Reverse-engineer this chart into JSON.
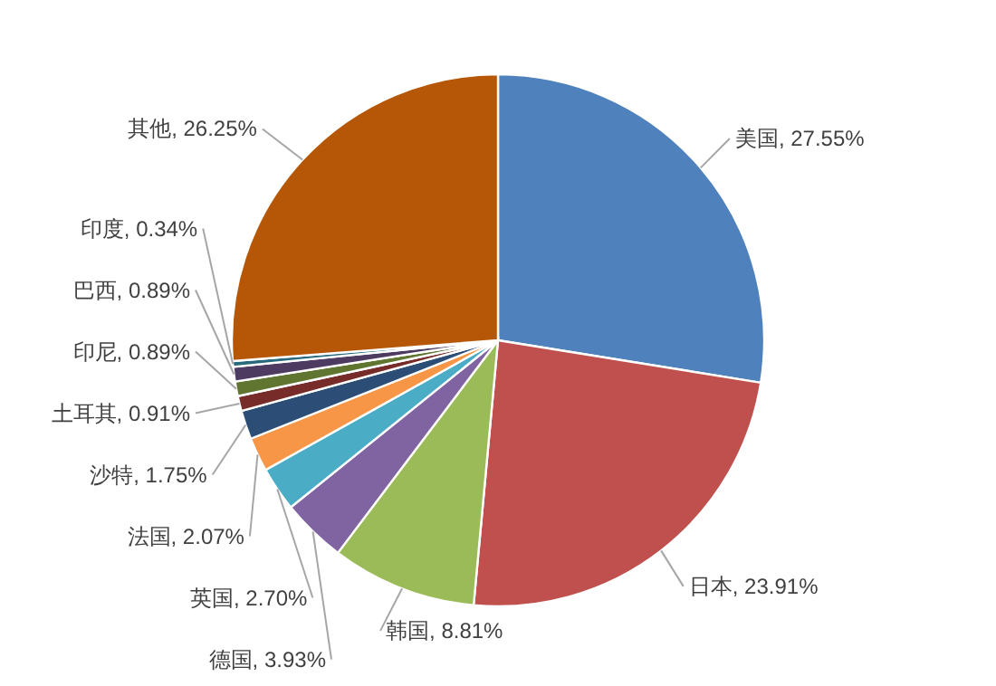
{
  "chart_data": {
    "type": "pie",
    "categories": [
      "美国",
      "日本",
      "韩国",
      "德国",
      "英国",
      "法国",
      "沙特",
      "土耳其",
      "印尼",
      "巴西",
      "印度",
      "其他"
    ],
    "values": [
      27.55,
      23.91,
      8.81,
      3.93,
      2.7,
      2.07,
      1.75,
      0.91,
      0.89,
      0.89,
      0.34,
      26.25
    ],
    "colors": [
      "#4f81bd",
      "#c0504d",
      "#9bbb59",
      "#8064a2",
      "#4bacc6",
      "#f79646",
      "#2c4d75",
      "#772c2a",
      "#5f7530",
      "#4d3b62",
      "#276a7c",
      "#b65708"
    ],
    "value_labels": [
      "27.55%",
      "23.91%",
      "8.81%",
      "3.93%",
      "2.70%",
      "2.07%",
      "1.75%",
      "0.91%",
      "0.89%",
      "0.89%",
      "0.34%",
      "26.25%"
    ]
  }
}
